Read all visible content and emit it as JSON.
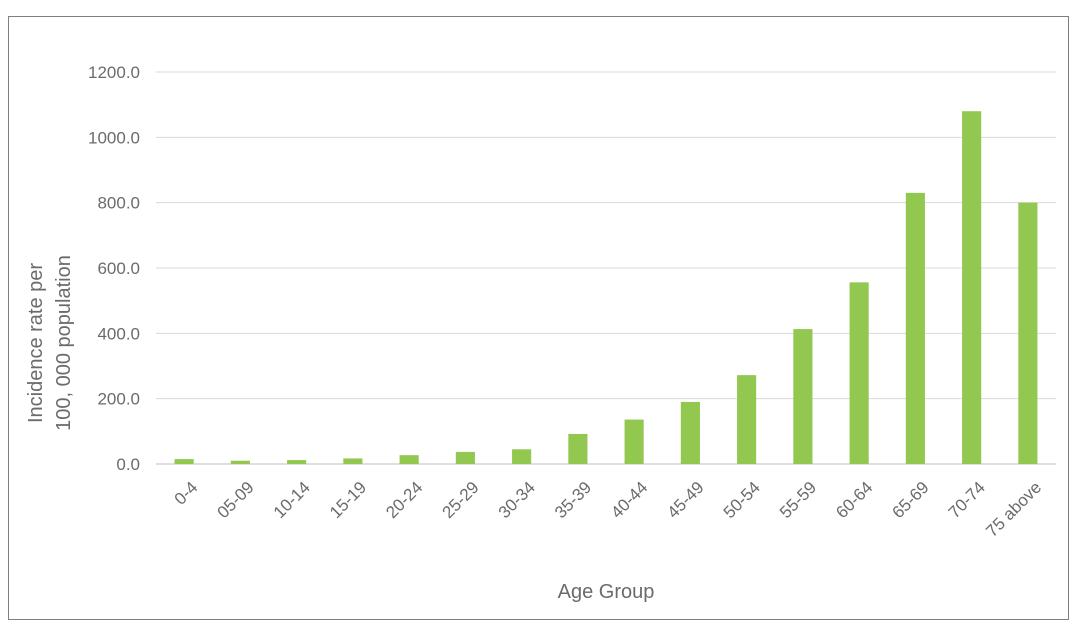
{
  "chart_data": {
    "type": "bar",
    "title": "",
    "xlabel": "Age Group",
    "ylabel_line1": "Incidence rate per",
    "ylabel_line2": "100, 000 population",
    "ylim": [
      0,
      1200
    ],
    "yticks": [
      "0.0",
      "200.0",
      "400.0",
      "600.0",
      "800.0",
      "1000.0",
      "1200.0"
    ],
    "grid": true,
    "bar_color": "#92c84f",
    "categories": [
      "0-4",
      "05-09",
      "10-14",
      "15-19",
      "20-24",
      "25-29",
      "30-34",
      "35-39",
      "40-44",
      "45-49",
      "50-54",
      "55-59",
      "60-64",
      "65-69",
      "70-74",
      "75 above"
    ],
    "values": [
      15,
      10,
      12,
      17,
      27,
      37,
      45,
      92,
      136,
      190,
      272,
      413,
      556,
      830,
      1080,
      800
    ]
  }
}
